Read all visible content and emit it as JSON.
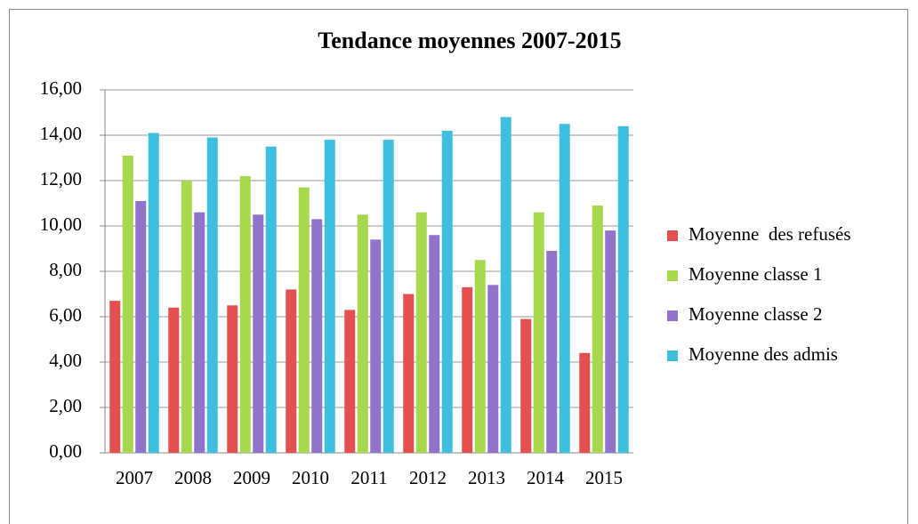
{
  "chart_data": {
    "type": "bar",
    "title": "Tendance moyennes 2007-2015",
    "categories": [
      "2007",
      "2008",
      "2009",
      "2010",
      "2011",
      "2012",
      "2013",
      "2014",
      "2015"
    ],
    "series": [
      {
        "name": "Moyenne  des refusés",
        "color": "#e4504f",
        "values": [
          6.7,
          6.4,
          6.5,
          7.2,
          6.3,
          7.0,
          7.3,
          5.9,
          4.4
        ]
      },
      {
        "name": "Moyenne classe 1",
        "color": "#a8d84e",
        "values": [
          13.1,
          12.0,
          12.2,
          11.7,
          10.5,
          10.6,
          8.5,
          10.6,
          10.9
        ]
      },
      {
        "name": "Moyenne classe 2",
        "color": "#9273cc",
        "values": [
          11.1,
          10.6,
          10.5,
          10.3,
          9.4,
          9.6,
          7.4,
          8.9,
          9.8
        ]
      },
      {
        "name": "Moyenne des admis",
        "color": "#3fbfdf",
        "values": [
          14.1,
          13.9,
          13.5,
          13.8,
          13.8,
          14.2,
          14.8,
          14.5,
          14.4
        ]
      }
    ],
    "ylim": [
      0,
      16
    ],
    "yticks": [
      {
        "value": 0,
        "label": "0,00"
      },
      {
        "value": 2,
        "label": "2,00"
      },
      {
        "value": 4,
        "label": "4,00"
      },
      {
        "value": 6,
        "label": "6,00"
      },
      {
        "value": 8,
        "label": "8,00"
      },
      {
        "value": 10,
        "label": "10,00"
      },
      {
        "value": 12,
        "label": "12,00"
      },
      {
        "value": 14,
        "label": "14,00"
      },
      {
        "value": 16,
        "label": "16,00"
      }
    ],
    "grid": true,
    "legend": "right"
  }
}
